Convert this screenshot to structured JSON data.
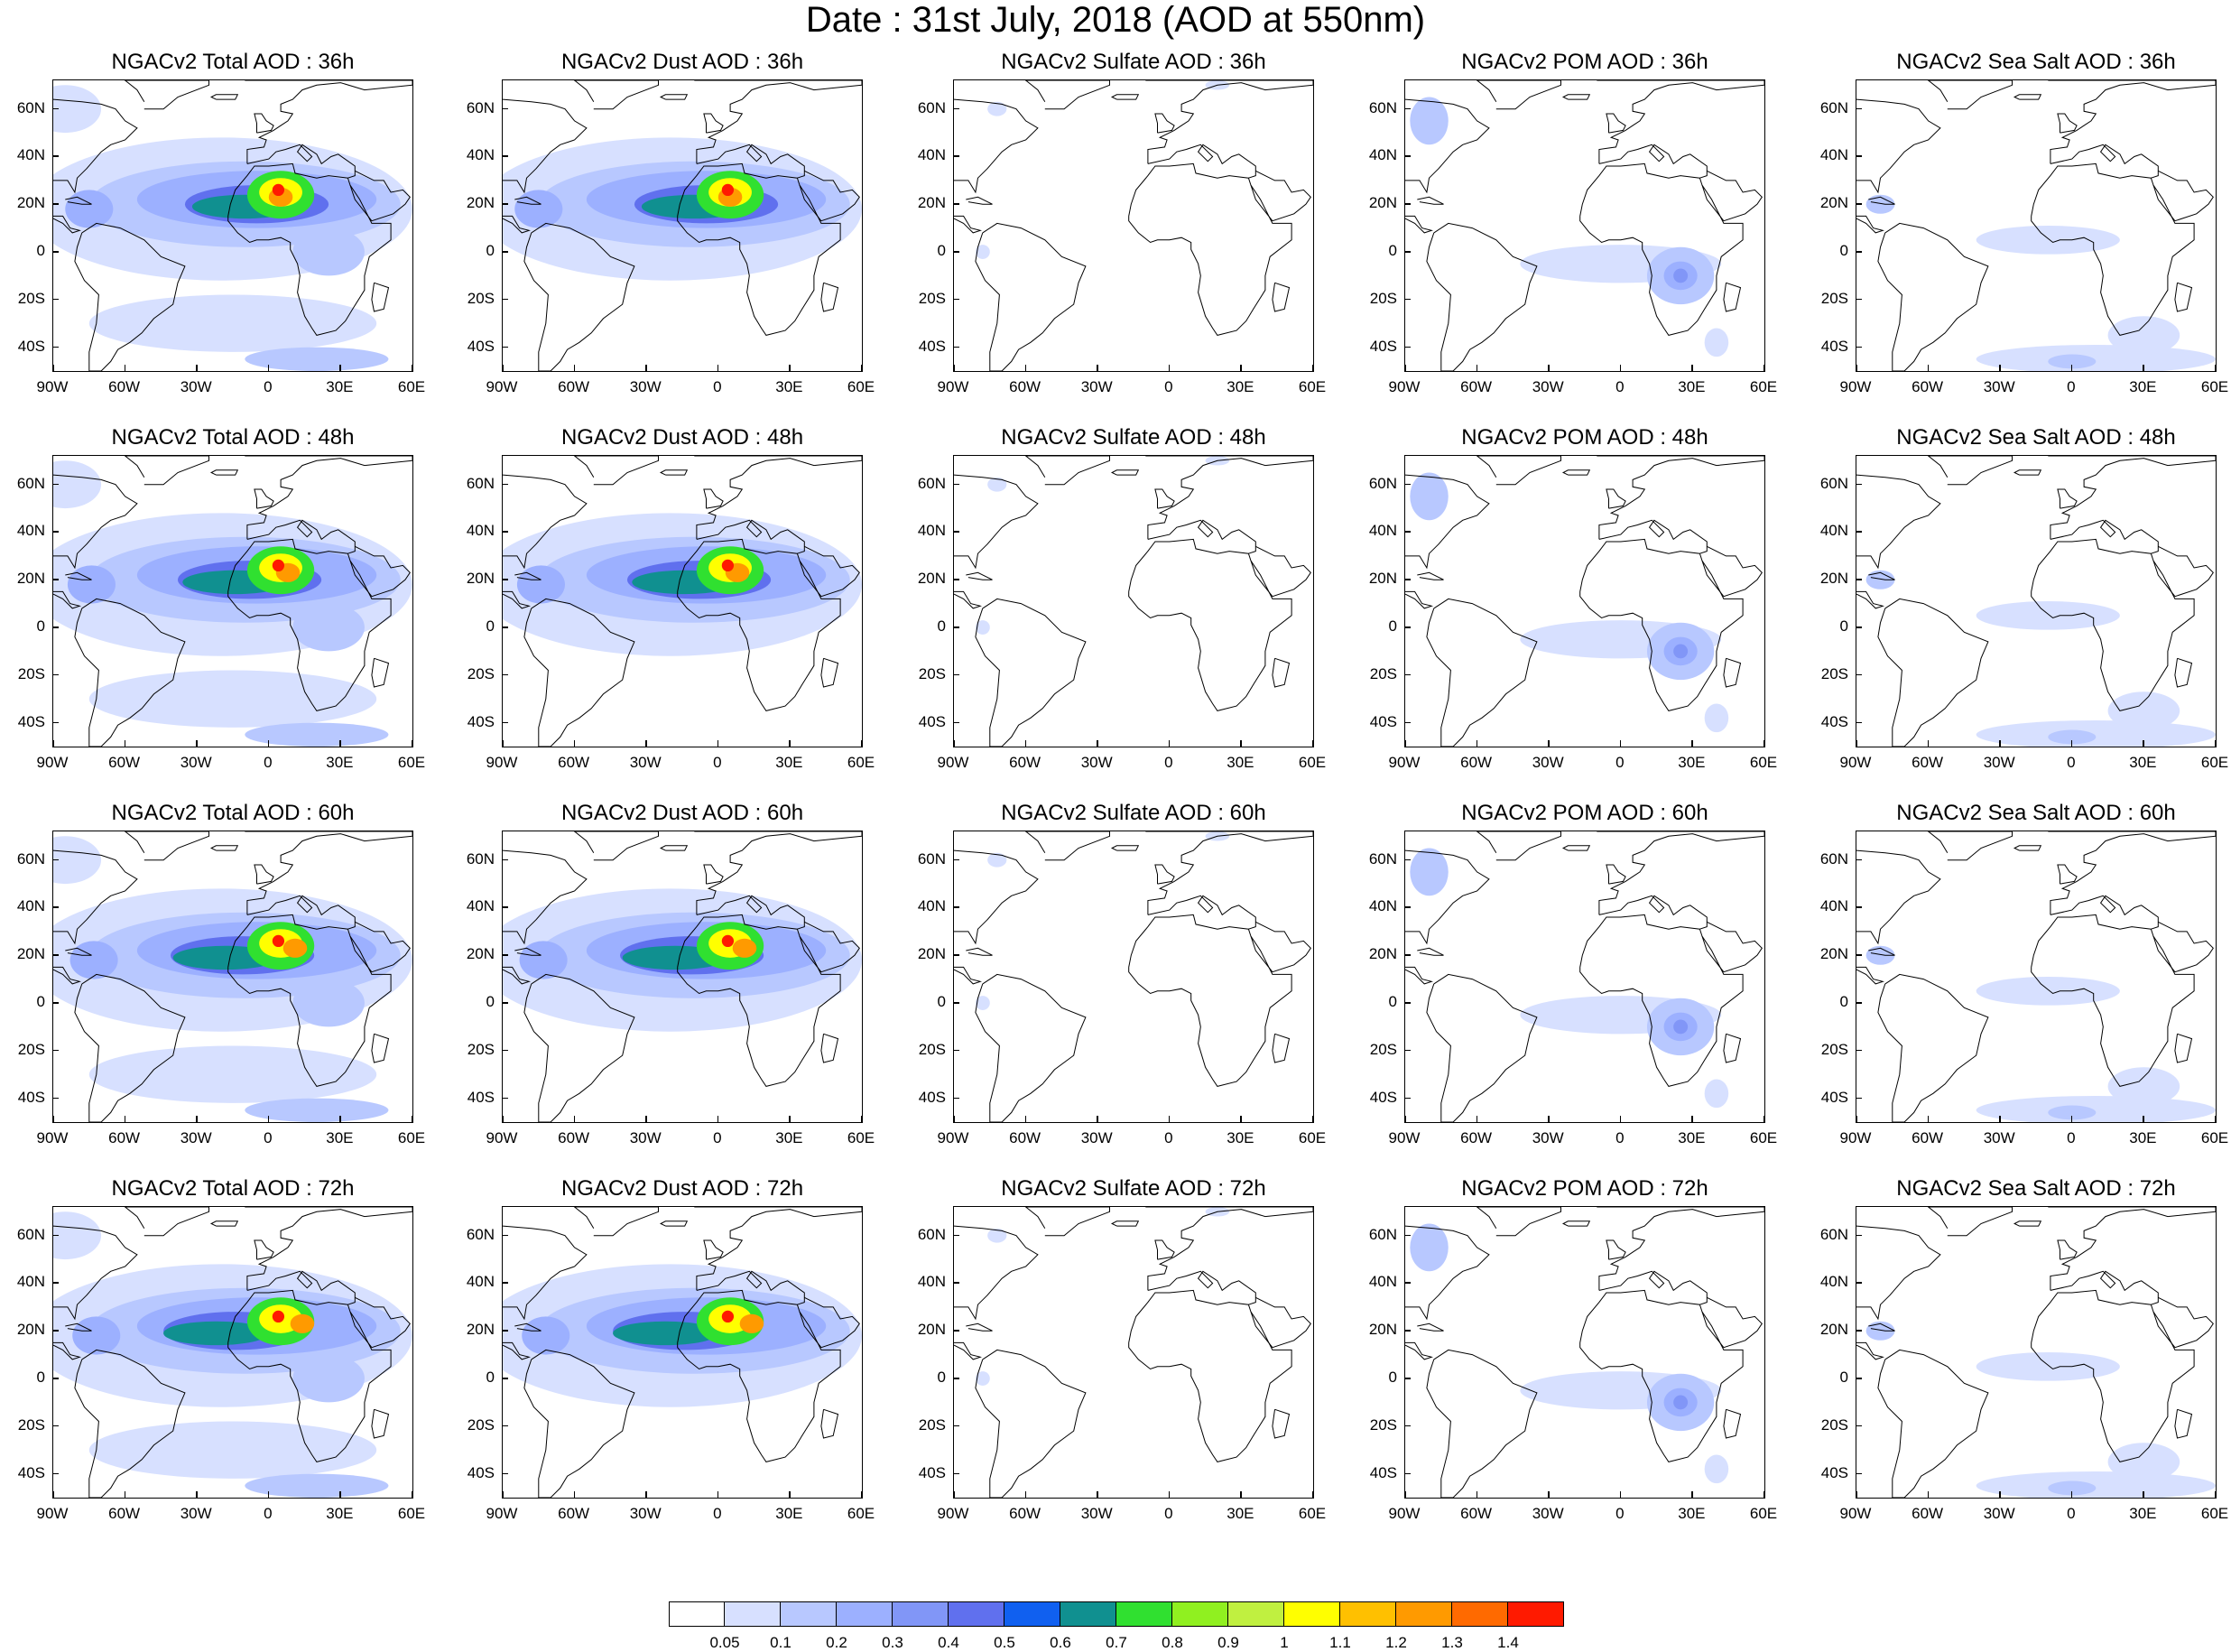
{
  "page_title": "Date : 31st July, 2018 (AOD at 550nm)",
  "lat_labels": [
    "60N",
    "40N",
    "20N",
    "0",
    "20S",
    "40S"
  ],
  "lon_labels": [
    "90W",
    "60W",
    "30W",
    "0",
    "30E",
    "60E"
  ],
  "panels": [
    {
      "title": "NGACv2 Total AOD : 36h",
      "species": "total",
      "lead": 36
    },
    {
      "title": "NGACv2 Dust AOD : 36h",
      "species": "dust",
      "lead": 36
    },
    {
      "title": "NGACv2 Sulfate AOD : 36h",
      "species": "sulfate",
      "lead": 36
    },
    {
      "title": "NGACv2 POM AOD : 36h",
      "species": "pom",
      "lead": 36
    },
    {
      "title": "NGACv2 Sea Salt AOD : 36h",
      "species": "seasalt",
      "lead": 36
    },
    {
      "title": "NGACv2 Total AOD : 48h",
      "species": "total",
      "lead": 48
    },
    {
      "title": "NGACv2 Dust AOD : 48h",
      "species": "dust",
      "lead": 48
    },
    {
      "title": "NGACv2 Sulfate AOD : 48h",
      "species": "sulfate",
      "lead": 48
    },
    {
      "title": "NGACv2 POM AOD : 48h",
      "species": "pom",
      "lead": 48
    },
    {
      "title": "NGACv2 Sea Salt AOD : 48h",
      "species": "seasalt",
      "lead": 48
    },
    {
      "title": "NGACv2 Total AOD : 60h",
      "species": "total",
      "lead": 60
    },
    {
      "title": "NGACv2 Dust AOD : 60h",
      "species": "dust",
      "lead": 60
    },
    {
      "title": "NGACv2 Sulfate AOD : 60h",
      "species": "sulfate",
      "lead": 60
    },
    {
      "title": "NGACv2 POM AOD : 60h",
      "species": "pom",
      "lead": 60
    },
    {
      "title": "NGACv2 Sea Salt AOD : 60h",
      "species": "seasalt",
      "lead": 60
    },
    {
      "title": "NGACv2 Total AOD : 72h",
      "species": "total",
      "lead": 72
    },
    {
      "title": "NGACv2 Dust AOD : 72h",
      "species": "dust",
      "lead": 72
    },
    {
      "title": "NGACv2 Sulfate AOD : 72h",
      "species": "sulfate",
      "lead": 72
    },
    {
      "title": "NGACv2 POM AOD : 72h",
      "species": "pom",
      "lead": 72
    },
    {
      "title": "NGACv2 Sea Salt  AOD : 72h",
      "species": "seasalt",
      "lead": 72
    }
  ],
  "colorbar": {
    "labels": [
      "0.05",
      "0.1",
      "0.2",
      "0.3",
      "0.4",
      "0.5",
      "0.6",
      "0.7",
      "0.8",
      "0.9",
      "1",
      "1.1",
      "1.2",
      "1.3",
      "1.4"
    ],
    "colors": [
      "#ffffff",
      "#d7e0ff",
      "#b8c8ff",
      "#9cb0ff",
      "#8196f7",
      "#6070ee",
      "#1060f0",
      "#109090",
      "#30e030",
      "#90f020",
      "#c0f040",
      "#ffff00",
      "#ffc000",
      "#ff9a00",
      "#ff6a00",
      "#ff1a00"
    ]
  }
}
